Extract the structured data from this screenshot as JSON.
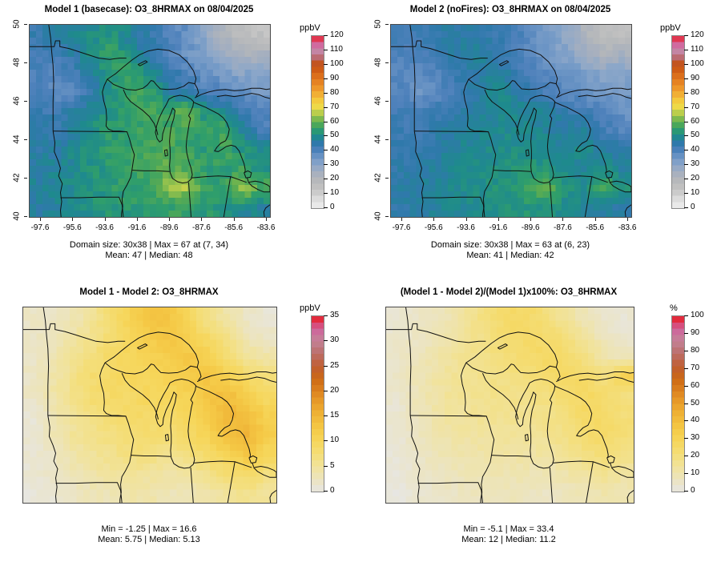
{
  "figure": {
    "background": "#ffffff"
  },
  "chart_data": [
    {
      "type": "heatmap",
      "panel": "top-left",
      "title": "Model 1 (basecase): O3_8HRMAX on 08/04/2025",
      "stats_line1": "Domain size: 30x38 | Max = 67 at (7, 34)",
      "stats_line2": "Mean: 47 |  Median: 48",
      "colorbar_label": "ppbV",
      "colormap": "conc",
      "vmin": 0,
      "vmax": 120,
      "colorbar_ticks": [
        0,
        10,
        20,
        30,
        40,
        50,
        60,
        70,
        80,
        90,
        100,
        110,
        120
      ],
      "x_tick_labels": [
        "-97.6",
        "-95.6",
        "-93.6",
        "-91.6",
        "-89.6",
        "-87.6",
        "-85.6",
        "-83.6"
      ],
      "y_tick_labels": [
        "50",
        "48",
        "46",
        "44",
        "42",
        "40"
      ],
      "grid_note": "approximate ozone field, ppbV, rows north to south",
      "values": [
        [
          44,
          46,
          48,
          51,
          52,
          48,
          44,
          40,
          36,
          30,
          22,
          17,
          15
        ],
        [
          42,
          44,
          46,
          52,
          56,
          50,
          45,
          40,
          36,
          32,
          26,
          22,
          24
        ],
        [
          40,
          38,
          42,
          48,
          54,
          56,
          50,
          45,
          40,
          36,
          34,
          30,
          32
        ],
        [
          42,
          36,
          40,
          46,
          52,
          57,
          55,
          48,
          44,
          41,
          38,
          36,
          34
        ],
        [
          44,
          42,
          46,
          50,
          53,
          55,
          58,
          54,
          63,
          52,
          48,
          44,
          38
        ],
        [
          45,
          44,
          48,
          52,
          54,
          55,
          57,
          58,
          56,
          54,
          58,
          48,
          42
        ],
        [
          46,
          46,
          50,
          53,
          55,
          56,
          57,
          58,
          56,
          54,
          58,
          52,
          50
        ],
        [
          47,
          48,
          50,
          52,
          54,
          56,
          58,
          60,
          58,
          55,
          54,
          56,
          52
        ],
        [
          48,
          49,
          51,
          52,
          54,
          55,
          57,
          63,
          65,
          56,
          54,
          65,
          58
        ],
        [
          47,
          48,
          50,
          52,
          53,
          54,
          55,
          56,
          55,
          54,
          52,
          50,
          48
        ]
      ]
    },
    {
      "type": "heatmap",
      "panel": "top-right",
      "title": "Model 2 (noFires): O3_8HRMAX on 08/04/2025",
      "stats_line1": "Domain size: 30x38 | Max = 63 at (6, 23)",
      "stats_line2": "Mean: 41 |  Median: 42",
      "colorbar_label": "ppbV",
      "colormap": "conc",
      "vmin": 0,
      "vmax": 120,
      "colorbar_ticks": [
        0,
        10,
        20,
        30,
        40,
        50,
        60,
        70,
        80,
        90,
        100,
        110,
        120
      ],
      "x_tick_labels": [
        "-97.6",
        "-95.6",
        "-93.6",
        "-91.6",
        "-89.6",
        "-87.6",
        "-85.6",
        "-83.6"
      ],
      "y_tick_labels": [
        "50",
        "48",
        "46",
        "44",
        "42",
        "40"
      ],
      "grid_note": "approximate ozone field, ppbV, rows north to south",
      "values": [
        [
          42,
          43,
          45,
          46,
          46,
          44,
          42,
          38,
          34,
          29,
          22,
          17,
          15
        ],
        [
          40,
          41,
          43,
          46,
          48,
          46,
          42,
          38,
          35,
          31,
          26,
          22,
          24
        ],
        [
          38,
          37,
          40,
          43,
          46,
          48,
          45,
          41,
          38,
          35,
          33,
          30,
          31
        ],
        [
          40,
          35,
          38,
          42,
          45,
          50,
          48,
          44,
          41,
          38,
          36,
          34,
          33
        ],
        [
          42,
          40,
          43,
          45,
          47,
          48,
          50,
          48,
          48,
          44,
          42,
          40,
          36
        ],
        [
          43,
          42,
          45,
          47,
          48,
          49,
          50,
          50,
          48,
          46,
          48,
          42,
          39
        ],
        [
          44,
          44,
          46,
          48,
          50,
          50,
          51,
          51,
          50,
          48,
          50,
          47,
          46
        ],
        [
          45,
          46,
          47,
          49,
          50,
          51,
          52,
          53,
          52,
          50,
          49,
          51,
          48
        ],
        [
          46,
          47,
          48,
          50,
          51,
          52,
          53,
          58,
          61,
          52,
          50,
          59,
          52
        ],
        [
          45,
          46,
          48,
          49,
          50,
          51,
          52,
          53,
          52,
          50,
          49,
          47,
          45
        ]
      ]
    },
    {
      "type": "heatmap",
      "panel": "bottom-left",
      "title": "Model 1 - Model 2: O3_8HRMAX",
      "stats_line1": "Min = -1.25 | Max = 16.6",
      "stats_line2": "Mean: 5.75 |  Median: 5.13",
      "colorbar_label": "ppbV",
      "colormap": "diff",
      "vmin": 0,
      "vmax": 35,
      "colorbar_ticks": [
        0,
        5,
        10,
        15,
        20,
        25,
        30,
        35
      ],
      "x_tick_labels": [],
      "y_tick_labels": [],
      "grid_note": "approximate difference field, ppbV, rows north to south",
      "values": [
        [
          2,
          2,
          3,
          5,
          8,
          11,
          13,
          13,
          10,
          6,
          4,
          2,
          1
        ],
        [
          2,
          3,
          4,
          6,
          8,
          10,
          12,
          13,
          11,
          9,
          6,
          3,
          2
        ],
        [
          2,
          3,
          5,
          7,
          9,
          10,
          11,
          12,
          13,
          11,
          8,
          5,
          4
        ],
        [
          2,
          4,
          6,
          8,
          9,
          10,
          10,
          11,
          12,
          13,
          11,
          9,
          7
        ],
        [
          2,
          4,
          6,
          8,
          9,
          9,
          10,
          10,
          11,
          13,
          14,
          12,
          9
        ],
        [
          1,
          3,
          5,
          7,
          8,
          9,
          9,
          9,
          10,
          12,
          15,
          14,
          11
        ],
        [
          1,
          3,
          5,
          6,
          7,
          8,
          8,
          8,
          9,
          11,
          14,
          15,
          12
        ],
        [
          1,
          2,
          4,
          5,
          6,
          7,
          7,
          6,
          7,
          9,
          11,
          13,
          10
        ],
        [
          1,
          2,
          3,
          4,
          5,
          5,
          5,
          4,
          5,
          6,
          8,
          9,
          7
        ],
        [
          0.5,
          1,
          2,
          3,
          3,
          4,
          4,
          3,
          3,
          4,
          5,
          6,
          5
        ]
      ]
    },
    {
      "type": "heatmap",
      "panel": "bottom-right",
      "title": "(Model 1 - Model 2)/(Model 1)x100%: O3_8HRMAX",
      "stats_line1": "Min = -5.1 | Max = 33.4",
      "stats_line2": "Mean: 12 |  Median: 11.2",
      "colorbar_label": "%",
      "colormap": "diff",
      "vmin": 0,
      "vmax": 100,
      "colorbar_ticks": [
        0,
        10,
        20,
        30,
        40,
        50,
        60,
        70,
        80,
        90,
        100
      ],
      "x_tick_labels": [],
      "y_tick_labels": [],
      "grid_note": "approximate percent difference field, %, rows north to south",
      "values": [
        [
          4,
          5,
          7,
          10,
          16,
          22,
          26,
          25,
          20,
          14,
          8,
          4,
          3
        ],
        [
          4,
          6,
          8,
          12,
          16,
          20,
          24,
          26,
          24,
          20,
          13,
          7,
          4
        ],
        [
          5,
          7,
          10,
          14,
          17,
          19,
          21,
          24,
          27,
          24,
          18,
          11,
          8
        ],
        [
          5,
          8,
          12,
          15,
          17,
          18,
          19,
          21,
          24,
          27,
          25,
          20,
          31
        ],
        [
          4,
          8,
          12,
          15,
          16,
          17,
          18,
          18,
          20,
          24,
          27,
          24,
          20
        ],
        [
          3,
          7,
          11,
          14,
          15,
          16,
          16,
          16,
          18,
          21,
          26,
          25,
          21
        ],
        [
          3,
          6,
          10,
          12,
          13,
          14,
          15,
          14,
          16,
          19,
          24,
          26,
          22
        ],
        [
          2,
          5,
          8,
          10,
          11,
          12,
          13,
          12,
          13,
          16,
          19,
          22,
          18
        ],
        [
          2,
          4,
          6,
          8,
          9,
          10,
          10,
          9,
          9,
          11,
          14,
          16,
          13
        ],
        [
          1,
          3,
          4,
          6,
          7,
          7,
          8,
          7,
          6,
          8,
          9,
          11,
          9
        ]
      ]
    }
  ],
  "colormaps": {
    "conc": [
      [
        0.0,
        "#efefef"
      ],
      [
        0.042,
        "#e2e2e2"
      ],
      [
        0.083,
        "#cdcdcd"
      ],
      [
        0.125,
        "#c0c0c0"
      ],
      [
        0.167,
        "#b4b7ba"
      ],
      [
        0.208,
        "#a5afbf"
      ],
      [
        0.25,
        "#8ca7c9"
      ],
      [
        0.292,
        "#6f97c6"
      ],
      [
        0.333,
        "#4e81bb"
      ],
      [
        0.375,
        "#2f79ab"
      ],
      [
        0.417,
        "#1e8a8d"
      ],
      [
        0.458,
        "#2f9e6b"
      ],
      [
        0.5,
        "#5ead50"
      ],
      [
        0.542,
        "#a8c94d"
      ],
      [
        0.583,
        "#eddc4a"
      ],
      [
        0.625,
        "#f3c93e"
      ],
      [
        0.667,
        "#f1ab33"
      ],
      [
        0.708,
        "#eb8f28"
      ],
      [
        0.75,
        "#e1791f"
      ],
      [
        0.792,
        "#d36117"
      ],
      [
        0.833,
        "#c35113"
      ],
      [
        0.875,
        "#bb6b73"
      ],
      [
        0.917,
        "#c48aad"
      ],
      [
        0.958,
        "#d55f99"
      ],
      [
        1.0,
        "#e8191c"
      ]
    ],
    "diff": [
      [
        0.0,
        "#e7e6e2"
      ],
      [
        0.07,
        "#ece4bf"
      ],
      [
        0.14,
        "#f1e39c"
      ],
      [
        0.21,
        "#f4de79"
      ],
      [
        0.29,
        "#f6d65a"
      ],
      [
        0.36,
        "#f5c946"
      ],
      [
        0.43,
        "#f0b638"
      ],
      [
        0.5,
        "#e99f2b"
      ],
      [
        0.57,
        "#dd8320"
      ],
      [
        0.64,
        "#cc6915"
      ],
      [
        0.71,
        "#c05e30"
      ],
      [
        0.79,
        "#bc6f6d"
      ],
      [
        0.86,
        "#c38397"
      ],
      [
        0.93,
        "#d0609c"
      ],
      [
        1.0,
        "#e8191c"
      ]
    ]
  }
}
